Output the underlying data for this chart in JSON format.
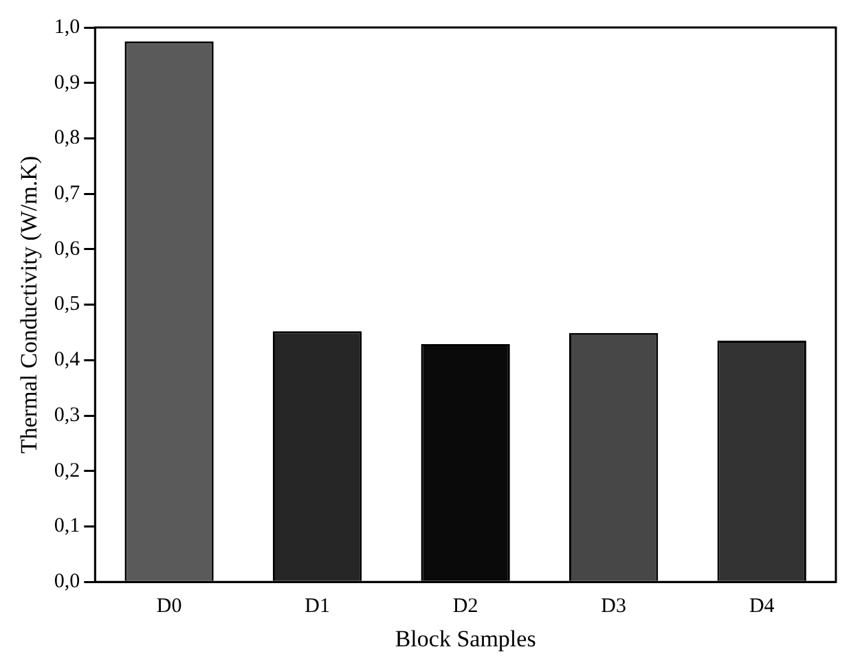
{
  "chart_data": {
    "type": "bar",
    "xlabel": "Block Samples",
    "ylabel": "Thermal Conductivity (W/m.K)",
    "categories": [
      "D0",
      "D1",
      "D2",
      "D3",
      "D4"
    ],
    "values": [
      0.975,
      0.452,
      0.429,
      0.449,
      0.435
    ],
    "colors": [
      "#5a5a5a",
      "#262626",
      "#0a0a0a",
      "#474747",
      "#333333"
    ],
    "ylim": [
      0,
      1.0
    ],
    "yticks": [
      {
        "value": 0,
        "label": "0,0"
      },
      {
        "value": 0.1,
        "label": "0,1"
      },
      {
        "value": 0.2,
        "label": "0,2"
      },
      {
        "value": 0.3,
        "label": "0,3"
      },
      {
        "value": 0.4,
        "label": "0,4"
      },
      {
        "value": 0.5,
        "label": "0,5"
      },
      {
        "value": 0.6,
        "label": "0,6"
      },
      {
        "value": 0.7,
        "label": "0,7"
      },
      {
        "value": 0.8,
        "label": "0,8"
      },
      {
        "value": 0.9,
        "label": "0,9"
      },
      {
        "value": 1.0,
        "label": "1,0"
      }
    ],
    "grid": false,
    "legend": false
  }
}
